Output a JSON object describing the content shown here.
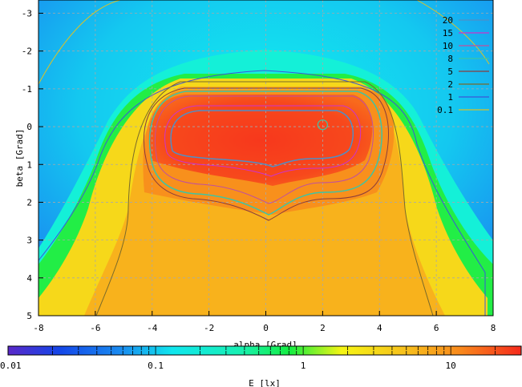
{
  "chart_data": {
    "type": "heatmap",
    "title": "",
    "xlabel": "alpha [Grad]",
    "ylabel": "beta [Grad]",
    "xlim": [
      -8,
      8
    ],
    "ylim": [
      -3.35,
      5
    ],
    "y_inverted": true,
    "x_ticks": [
      "-8",
      "-6",
      "-4",
      "-2",
      "0",
      "2",
      "4",
      "6",
      "8"
    ],
    "y_ticks": [
      "-3",
      "-2",
      "-1",
      "0",
      "1",
      "2",
      "3",
      "4",
      "5"
    ],
    "grid": true,
    "colorbar": {
      "label": "E [lx]",
      "scale": "log",
      "range": [
        0.01,
        30
      ],
      "ticks": [
        "0.01",
        "0.1",
        "1",
        "10"
      ]
    },
    "contour_levels": [
      {
        "label": "20",
        "value": 20,
        "color": "#4f8fc7"
      },
      {
        "label": "15",
        "value": 15,
        "color": "#cc33cc"
      },
      {
        "label": "10",
        "value": 10,
        "color": "#c0509e"
      },
      {
        "label": "8",
        "value": 8,
        "color": "#3ec4a4"
      },
      {
        "label": "5",
        "value": 5,
        "color": "#8a3c3c"
      },
      {
        "label": "2",
        "value": 2,
        "color": "#7a6a2a"
      },
      {
        "label": "1",
        "value": 1,
        "color": "#3b56d8"
      },
      {
        "label": "0.1",
        "value": 0.1,
        "color": "#d8c22a"
      }
    ],
    "peak_marker": {
      "alpha": 2,
      "beta": -0.05
    }
  }
}
